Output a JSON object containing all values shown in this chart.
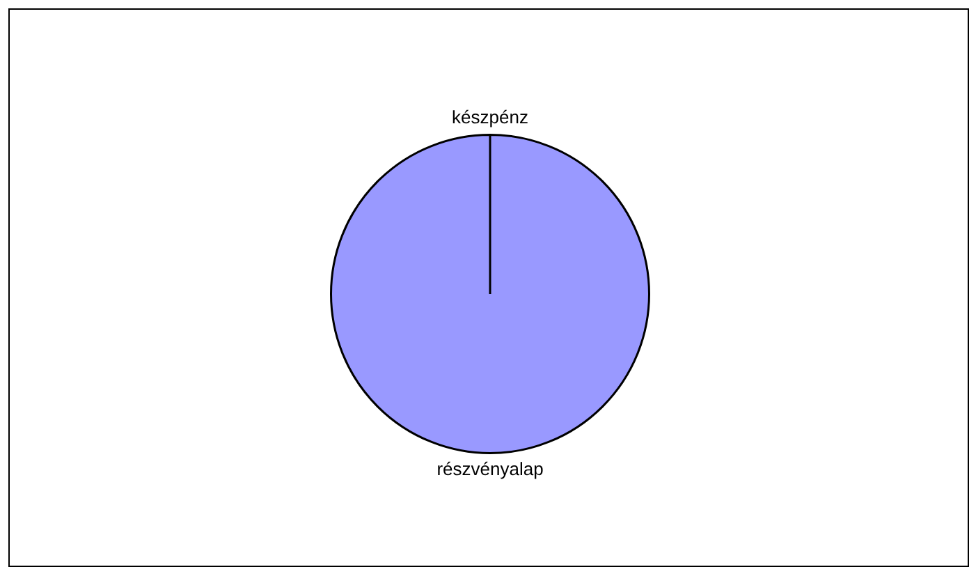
{
  "chart_data": {
    "type": "pie",
    "categories": [
      "készpénz",
      "részvényalap"
    ],
    "values": [
      0,
      100
    ],
    "colors": [
      "#9999ff",
      "#9999ff"
    ],
    "legend": false
  }
}
